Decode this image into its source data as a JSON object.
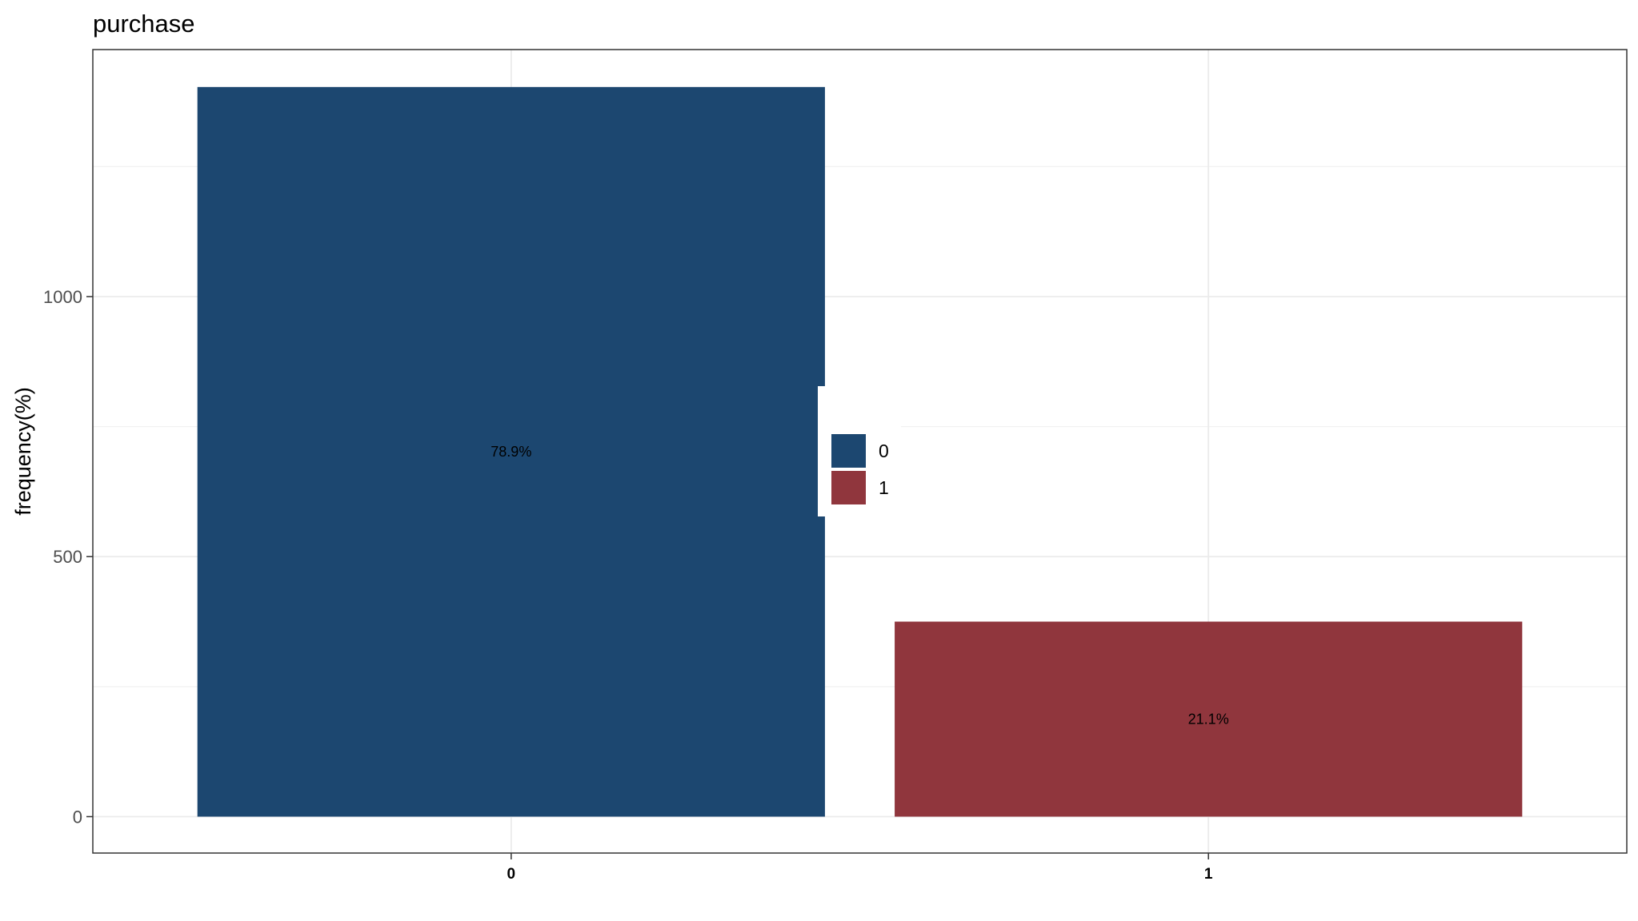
{
  "chart_data": {
    "type": "bar",
    "title": "purchase",
    "xlabel": "",
    "ylabel": "frequency(%)",
    "categories": [
      "0",
      "1"
    ],
    "values": [
      1403,
      375
    ],
    "labels": [
      "78.9%",
      "21.1%"
    ],
    "colors": [
      "#1c4770",
      "#90363d"
    ],
    "ylim": [
      -70,
      1475
    ],
    "yticks": [
      0,
      500,
      1000
    ],
    "ytick_labels": [
      "0",
      "500",
      "1000"
    ],
    "grid": true,
    "legend": {
      "placement": "center",
      "entries": [
        {
          "label": "0",
          "color": "#1c4770"
        },
        {
          "label": "1",
          "color": "#90363d"
        }
      ]
    }
  }
}
